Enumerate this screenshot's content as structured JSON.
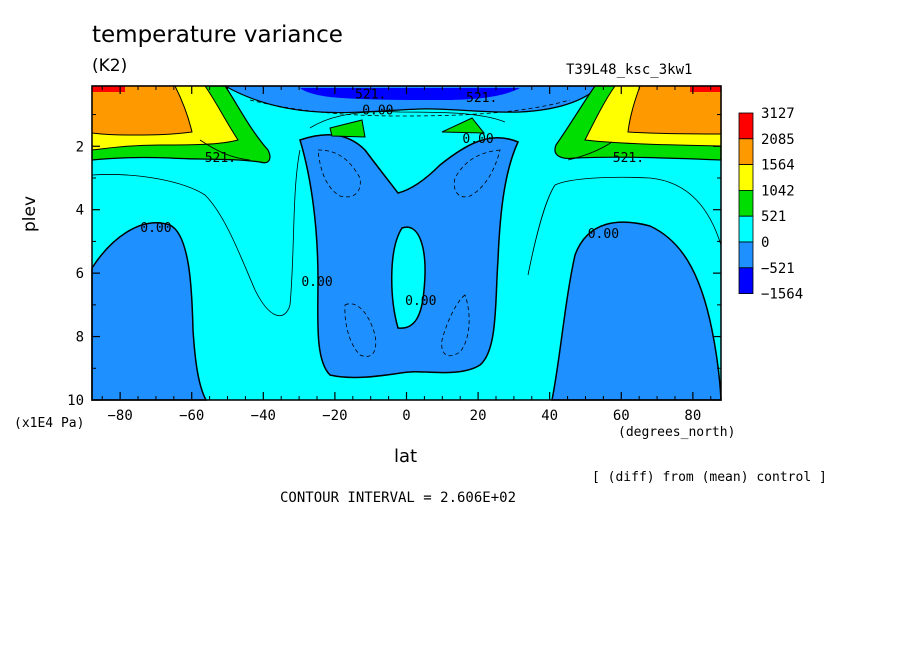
{
  "chart_data": {
    "type": "heatmap",
    "title": "temperature variance",
    "units": "(K2)",
    "run_label": "T39L48_ksc_3kw1",
    "xlabel": "lat",
    "x_units": "(degrees_north)",
    "ylabel": "plev",
    "y_units": "(x1E4 Pa)",
    "diff_note": "[ (diff) from (mean) control ]",
    "contour_interval_text": "CONTOUR INTERVAL = 2.606E+02",
    "xlim": [
      -87.86,
      87.86
    ],
    "ylim": [
      10,
      0.1
    ],
    "x_ticks": [
      {
        "value": -80,
        "label": "−80"
      },
      {
        "value": -60,
        "label": "−60"
      },
      {
        "value": -40,
        "label": "−40"
      },
      {
        "value": -20,
        "label": "−20"
      },
      {
        "value": 0,
        "label": "0"
      },
      {
        "value": 20,
        "label": "20"
      },
      {
        "value": 40,
        "label": "40"
      },
      {
        "value": 60,
        "label": "60"
      },
      {
        "value": 80,
        "label": "80"
      }
    ],
    "y_ticks": [
      {
        "value": 2,
        "label": "2"
      },
      {
        "value": 4,
        "label": "4"
      },
      {
        "value": 6,
        "label": "6"
      },
      {
        "value": 8,
        "label": "8"
      },
      {
        "value": 10,
        "label": "10"
      }
    ],
    "colorbar": {
      "levels": [
        "3127",
        "2085",
        "1564",
        "1042",
        "521",
        "0",
        "−521",
        "−1564"
      ],
      "colors": [
        "#ff0000",
        "#ff9900",
        "#ffff00",
        "#00dd00",
        "#00ffff",
        "#1e90ff",
        "#0000ff"
      ]
    },
    "contour_labels": [
      {
        "text": "521.",
        "lat": -52,
        "plev": 2.5
      },
      {
        "text": "521.",
        "lat": 62,
        "plev": 2.5
      },
      {
        "text": "521.",
        "lat": -10,
        "plev": 0.5
      },
      {
        "text": "521.",
        "lat": 21,
        "plev": 0.6
      },
      {
        "text": "0.00",
        "lat": -8,
        "plev": 1.0
      },
      {
        "text": "0.00",
        "lat": 20,
        "plev": 1.9
      },
      {
        "text": "0.00",
        "lat": -70,
        "plev": 4.7
      },
      {
        "text": "0.00",
        "lat": -25,
        "plev": 6.4
      },
      {
        "text": "0.00",
        "lat": 4,
        "plev": 7.0
      },
      {
        "text": "0.00",
        "lat": 55,
        "plev": 4.9
      }
    ]
  }
}
